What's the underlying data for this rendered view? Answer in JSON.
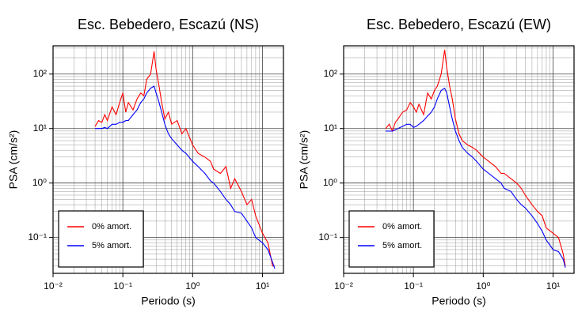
{
  "chart_data": [
    {
      "type": "line",
      "title": "Esc. Bebedero, Escazú (NS)",
      "xlabel": "Periodo (s)",
      "ylabel": "PSA (cm/s²)",
      "xscale": "log",
      "yscale": "log",
      "grid": true,
      "minor_grid": true,
      "legend": "lower left",
      "xlim": [
        0.01,
        20
      ],
      "ylim": [
        0.022,
        330
      ],
      "xticks": [
        {
          "value": 0.01,
          "label": "10⁻²"
        },
        {
          "value": 0.1,
          "label": "10⁻¹"
        },
        {
          "value": 1,
          "label": "10⁰"
        },
        {
          "value": 10,
          "label": "10¹"
        }
      ],
      "yticks": [
        {
          "value": 0.1,
          "label": "10⁻¹"
        },
        {
          "value": 1,
          "label": "10⁰"
        },
        {
          "value": 10,
          "label": "10¹"
        },
        {
          "value": 100,
          "label": "10²"
        }
      ],
      "x": [
        0.04,
        0.045,
        0.05,
        0.055,
        0.06,
        0.07,
        0.08,
        0.09,
        0.1,
        0.11,
        0.12,
        0.14,
        0.16,
        0.18,
        0.2,
        0.22,
        0.25,
        0.28,
        0.3,
        0.33,
        0.36,
        0.4,
        0.45,
        0.5,
        0.6,
        0.7,
        0.8,
        1.0,
        1.2,
        1.5,
        1.8,
        2.0,
        2.5,
        3.0,
        3.5,
        4.0,
        5.0,
        6.0,
        7.0,
        8.0,
        10,
        12,
        14,
        15
      ],
      "series": [
        {
          "name": "0% amort.",
          "color": "#ff0000",
          "values": [
            11,
            14,
            13,
            18,
            14,
            25,
            18,
            30,
            45,
            20,
            30,
            22,
            35,
            45,
            40,
            80,
            100,
            260,
            120,
            60,
            30,
            15,
            20,
            12,
            14,
            8,
            10,
            5,
            3.5,
            3,
            2.5,
            1.8,
            1.5,
            2,
            0.8,
            1.2,
            0.7,
            0.4,
            0.5,
            0.25,
            0.12,
            0.08,
            0.03,
            0.03
          ]
        },
        {
          "name": "5% amort.",
          "color": "#0000ff",
          "values": [
            10,
            10,
            10,
            10.5,
            10,
            12,
            12,
            13,
            13,
            14,
            14,
            18,
            22,
            30,
            35,
            45,
            55,
            60,
            45,
            30,
            20,
            12,
            8,
            6.5,
            5,
            4,
            3.5,
            2.5,
            2,
            1.5,
            1.1,
            1,
            0.7,
            0.5,
            0.4,
            0.3,
            0.28,
            0.2,
            0.15,
            0.1,
            0.08,
            0.06,
            0.035,
            0.027
          ]
        }
      ]
    },
    {
      "type": "line",
      "title": "Esc. Bebedero, Escazú (EW)",
      "xlabel": "Periodo (s)",
      "ylabel": "PSA (cm/s²)",
      "xscale": "log",
      "yscale": "log",
      "grid": true,
      "minor_grid": true,
      "legend": "lower left",
      "xlim": [
        0.01,
        20
      ],
      "ylim": [
        0.022,
        330
      ],
      "xticks": [
        {
          "value": 0.01,
          "label": "10⁻²"
        },
        {
          "value": 0.1,
          "label": "10⁻¹"
        },
        {
          "value": 1,
          "label": "10⁰"
        },
        {
          "value": 10,
          "label": "10¹"
        }
      ],
      "yticks": [
        {
          "value": 0.1,
          "label": "10⁻¹"
        },
        {
          "value": 1,
          "label": "10⁰"
        },
        {
          "value": 10,
          "label": "10¹"
        },
        {
          "value": 100,
          "label": "10²"
        }
      ],
      "x": [
        0.04,
        0.045,
        0.05,
        0.055,
        0.06,
        0.07,
        0.08,
        0.09,
        0.1,
        0.11,
        0.12,
        0.14,
        0.16,
        0.18,
        0.2,
        0.22,
        0.25,
        0.28,
        0.3,
        0.33,
        0.36,
        0.4,
        0.45,
        0.5,
        0.6,
        0.7,
        0.8,
        1.0,
        1.2,
        1.5,
        1.8,
        2.0,
        2.5,
        3.0,
        3.5,
        4.0,
        5.0,
        6.0,
        7.0,
        8.0,
        10,
        12,
        14,
        15
      ],
      "series": [
        {
          "name": "0% amort.",
          "color": "#ff0000",
          "values": [
            10,
            12,
            9,
            13,
            15,
            20,
            22,
            30,
            25,
            20,
            28,
            18,
            45,
            35,
            50,
            60,
            100,
            280,
            130,
            60,
            35,
            15,
            8,
            6,
            5,
            4.5,
            4,
            3,
            2.5,
            2,
            1.5,
            1.5,
            1.2,
            1,
            0.8,
            0.6,
            0.4,
            0.3,
            0.25,
            0.15,
            0.12,
            0.1,
            0.05,
            0.03
          ]
        },
        {
          "name": "5% amort.",
          "color": "#0000ff",
          "values": [
            9,
            9,
            9,
            9.5,
            10,
            11,
            12,
            12,
            10.5,
            11,
            12,
            14,
            17,
            20,
            25,
            35,
            50,
            55,
            45,
            25,
            15,
            9,
            6,
            4.5,
            3.5,
            3,
            2.5,
            1.8,
            1.5,
            1.2,
            1,
            0.8,
            0.7,
            0.5,
            0.4,
            0.35,
            0.25,
            0.18,
            0.13,
            0.09,
            0.06,
            0.055,
            0.04,
            0.028
          ]
        }
      ]
    }
  ]
}
